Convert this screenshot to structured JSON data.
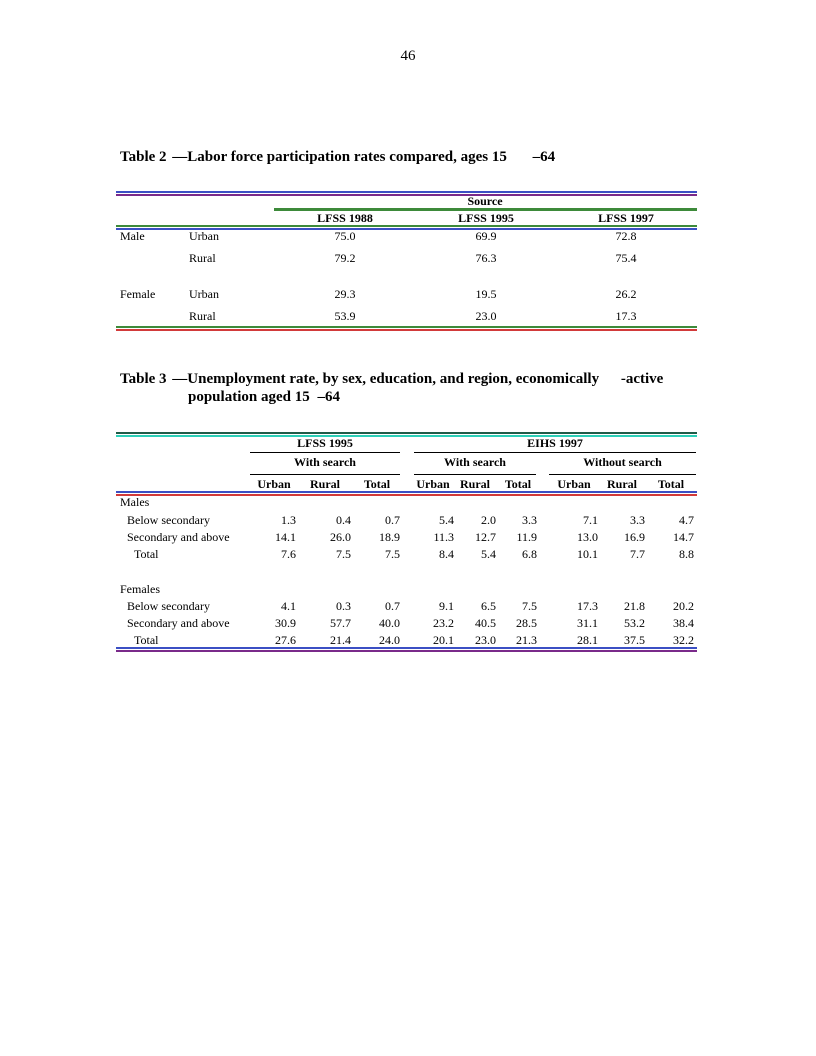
{
  "page_number": "46",
  "table2": {
    "caption_label": "Table 2",
    "caption_dash": "—",
    "caption_text": "Labor force participation rates compared, ages 15",
    "caption_tail": "–64",
    "source_label": "Source",
    "columns": [
      "LFSS 1988",
      "LFSS 1995",
      "LFSS 1997"
    ],
    "rows": [
      {
        "sex": "Male",
        "area": "Urban",
        "values": [
          "75.0",
          "69.9",
          "72.8"
        ]
      },
      {
        "sex": "",
        "area": "Rural",
        "values": [
          "79.2",
          "76.3",
          "75.4"
        ]
      },
      {
        "sex": "Female",
        "area": "Urban",
        "values": [
          "29.3",
          "19.5",
          "26.2"
        ]
      },
      {
        "sex": "",
        "area": "Rural",
        "values": [
          "53.9",
          "23.0",
          "17.3"
        ]
      }
    ]
  },
  "table3": {
    "caption_label": "Table 3",
    "caption_dash": "—",
    "caption_text": "Unemployment rate, by sex, education, and region, economically",
    "caption_tail": "-active",
    "caption_line2": "population aged 15",
    "caption_line2_tail": "–64",
    "group1": "LFSS 1995",
    "group2": "EIHS 1997",
    "sub1": "With search",
    "sub2": "With search",
    "sub3": "Without search",
    "col_labels": [
      "Urban",
      "Rural",
      "Total",
      "Urban",
      "Rural",
      "Total",
      "Urban",
      "Rural",
      "Total"
    ],
    "males_label": "Males",
    "females_label": "Females",
    "males_rows": [
      {
        "label": "Below secondary",
        "values": [
          "1.3",
          "0.4",
          "0.7",
          "5.4",
          "2.0",
          "3.3",
          "7.1",
          "3.3",
          "4.7"
        ]
      },
      {
        "label": "Secondary and above",
        "values": [
          "14.1",
          "26.0",
          "18.9",
          "11.3",
          "12.7",
          "11.9",
          "13.0",
          "16.9",
          "14.7"
        ]
      },
      {
        "label": "Total",
        "values": [
          "7.6",
          "7.5",
          "7.5",
          "8.4",
          "5.4",
          "6.8",
          "10.1",
          "7.7",
          "8.8"
        ]
      }
    ],
    "females_rows": [
      {
        "label": "Below secondary",
        "values": [
          "4.1",
          "0.3",
          "0.7",
          "9.1",
          "6.5",
          "7.5",
          "17.3",
          "21.8",
          "20.2"
        ]
      },
      {
        "label": "Secondary and above",
        "values": [
          "30.9",
          "57.7",
          "40.0",
          "23.2",
          "40.5",
          "28.5",
          "31.1",
          "53.2",
          "38.4"
        ]
      },
      {
        "label": "Total",
        "values": [
          "27.6",
          "21.4",
          "24.0",
          "20.1",
          "23.0",
          "21.3",
          "28.1",
          "37.5",
          "32.2"
        ]
      }
    ]
  },
  "colors": {
    "blue": "#3b4fc4",
    "purple": "#7a2a8a",
    "green": "#3d8a3a",
    "red": "#d23a3a",
    "teal": "#2bd0b8",
    "darkgreen": "#1e5c48"
  }
}
